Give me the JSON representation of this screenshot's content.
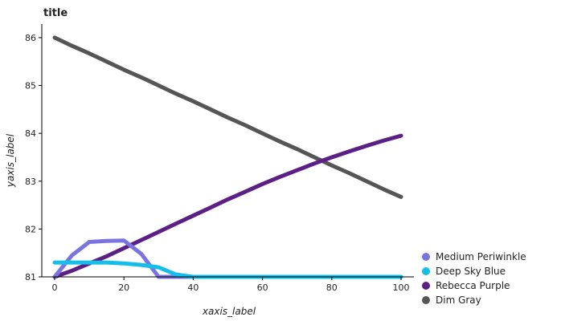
{
  "chart_data": {
    "type": "line",
    "title": "title",
    "xlabel": "xaxis_label",
    "ylabel": "yaxis_label",
    "xlim": [
      0,
      100
    ],
    "ylim": [
      81,
      86.2
    ],
    "xticks": [
      0,
      20,
      40,
      60,
      80,
      100
    ],
    "yticks": [
      81,
      82,
      83,
      84,
      85,
      86
    ],
    "legend_position": "bottom-right",
    "series": [
      {
        "name": "Dim Gray",
        "color": "#555555",
        "x": [
          0,
          5,
          10,
          15,
          20,
          25,
          30,
          35,
          40,
          45,
          50,
          55,
          60,
          65,
          70,
          75,
          80,
          85,
          90,
          95,
          100
        ],
        "y": [
          86.0,
          85.83,
          85.67,
          85.5,
          85.33,
          85.17,
          85.0,
          84.83,
          84.67,
          84.5,
          84.33,
          84.17,
          84.0,
          83.83,
          83.67,
          83.5,
          83.33,
          83.17,
          83.0,
          82.83,
          82.67
        ]
      },
      {
        "name": "Rebecca Purple",
        "color": "#5b1f86",
        "x": [
          0,
          5,
          10,
          15,
          20,
          25,
          30,
          35,
          40,
          45,
          50,
          55,
          60,
          65,
          70,
          75,
          80,
          85,
          90,
          95,
          100
        ],
        "y": [
          81.0,
          81.13,
          81.28,
          81.43,
          81.6,
          81.77,
          81.94,
          82.11,
          82.28,
          82.45,
          82.62,
          82.78,
          82.94,
          83.09,
          83.23,
          83.37,
          83.5,
          83.62,
          83.74,
          83.85,
          83.95
        ]
      },
      {
        "name": "Medium Periwinkle",
        "color": "#7a74de",
        "x": [
          0,
          5,
          10,
          15,
          20,
          25,
          30,
          35,
          40,
          45,
          50,
          55,
          60,
          65,
          70,
          75,
          80,
          85,
          90,
          95,
          100
        ],
        "y": [
          81.0,
          81.45,
          81.73,
          81.75,
          81.76,
          81.48,
          81.0,
          81.0,
          81.0,
          81.0,
          81.0,
          81.0,
          81.0,
          81.0,
          81.0,
          81.0,
          81.0,
          81.0,
          81.0,
          81.0,
          81.0
        ]
      },
      {
        "name": "Deep Sky Blue",
        "color": "#13bfe8",
        "x": [
          0,
          5,
          10,
          15,
          20,
          25,
          30,
          35,
          40,
          45,
          50,
          55,
          60,
          65,
          70,
          75,
          80,
          85,
          90,
          95,
          100
        ],
        "y": [
          81.3,
          81.3,
          81.3,
          81.3,
          81.28,
          81.25,
          81.2,
          81.05,
          81.0,
          81.0,
          81.0,
          81.0,
          81.0,
          81.0,
          81.0,
          81.0,
          81.0,
          81.0,
          81.0,
          81.0,
          81.0
        ]
      }
    ],
    "legend": [
      {
        "name": "Medium Periwinkle",
        "color": "#7a74de"
      },
      {
        "name": "Deep Sky Blue",
        "color": "#13bfe8"
      },
      {
        "name": "Rebecca Purple",
        "color": "#5b1f86"
      },
      {
        "name": "Dim Gray",
        "color": "#555555"
      }
    ]
  }
}
